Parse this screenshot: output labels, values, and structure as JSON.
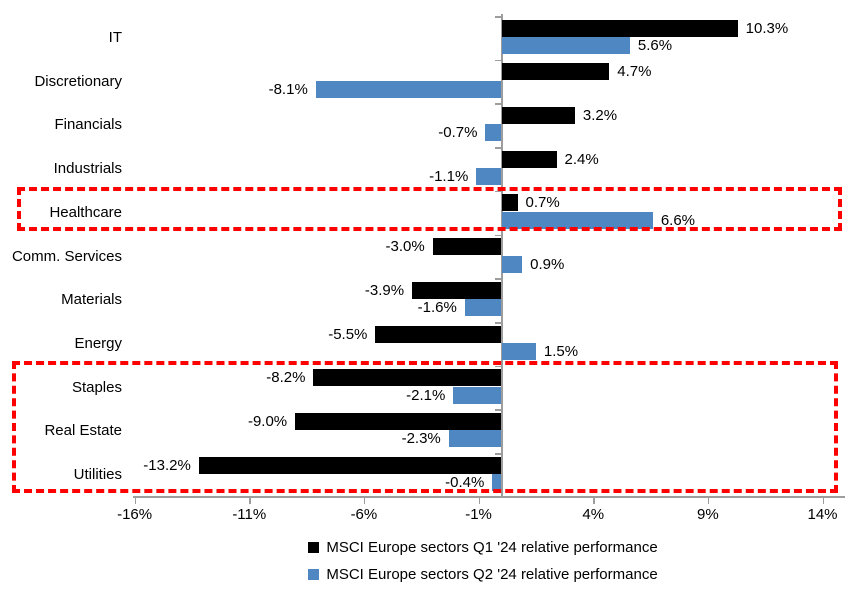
{
  "chart_data": {
    "type": "bar",
    "orientation": "horizontal",
    "title": "",
    "categories": [
      "IT",
      "Discretionary",
      "Financials",
      "Industrials",
      "Healthcare",
      "Comm. Services",
      "Materials",
      "Energy",
      "Staples",
      "Real Estate",
      "Utilities"
    ],
    "series": [
      {
        "name": "MSCI Europe sectors Q1 '24 relative performance",
        "color": "#000000",
        "values": [
          10.3,
          4.7,
          3.2,
          2.4,
          0.7,
          -3.0,
          -3.9,
          -5.5,
          -8.2,
          -9.0,
          -13.2
        ],
        "labels": [
          "10.3%",
          "4.7%",
          "3.2%",
          "2.4%",
          "0.7%",
          "-3.0%",
          "-3.9%",
          "-5.5%",
          "-8.2%",
          "-9.0%",
          "-13.2%"
        ]
      },
      {
        "name": "MSCI Europe sectors Q2 '24 relative performance",
        "color": "#4e87c1",
        "values": [
          5.6,
          -8.1,
          -0.7,
          -1.1,
          6.6,
          0.9,
          -1.6,
          1.5,
          -2.1,
          -2.3,
          -0.4
        ],
        "labels": [
          "5.6%",
          "-8.1%",
          "-0.7%",
          "-1.1%",
          "6.6%",
          "0.9%",
          "-1.6%",
          "1.5%",
          "-2.1%",
          "-2.3%",
          "-0.4%"
        ]
      }
    ],
    "x_axis": {
      "min": -16,
      "max": 14,
      "tick_values": [
        -16,
        -11,
        -6,
        -1,
        4,
        9,
        14
      ],
      "tick_labels": [
        "-16%",
        "-11%",
        "-6%",
        "-1%",
        "4%",
        "9%",
        "14%"
      ]
    },
    "grid": false,
    "legend_position": "bottom",
    "annotations": {
      "highlight_boxes": [
        {
          "name": "healthcare",
          "categories": [
            "Healthcare"
          ],
          "color": "#fe0000"
        },
        {
          "name": "defensives",
          "categories": [
            "Staples",
            "Real Estate",
            "Utilities"
          ],
          "color": "#fe0000"
        }
      ]
    }
  },
  "colors": {
    "q1_bar": "#000000",
    "q2_bar": "#4e87c1",
    "axis": "#9d9d9d",
    "highlight": "#fe0000",
    "text": "#000000"
  }
}
